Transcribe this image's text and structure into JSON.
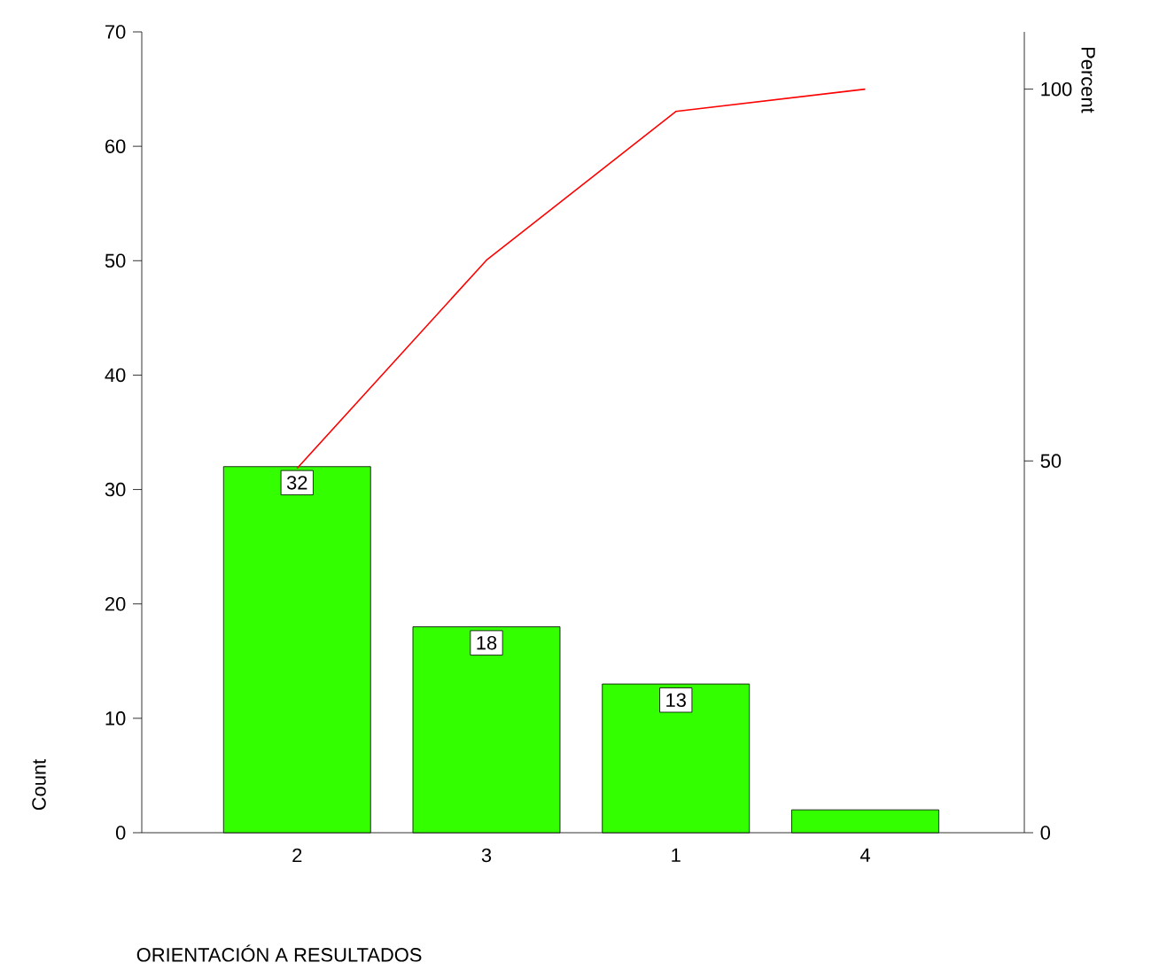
{
  "chart_data": {
    "type": "bar",
    "xlabel": "ORIENTACIÓN A RESULTADOS",
    "ylabel": "Count",
    "y2label": "Percent",
    "categories": [
      "2",
      "3",
      "1",
      "4"
    ],
    "series": [
      {
        "color": "#33ff00",
        "values": [
          32,
          18,
          13,
          2
        ],
        "value_labels": [
          "32",
          "18",
          "13",
          null
        ]
      },
      {
        "type": "line",
        "axis": "y2",
        "color": "#ff0000",
        "values": [
          49,
          77,
          97,
          100
        ]
      }
    ],
    "ylim": [
      0,
      70
    ],
    "yticks": [
      0,
      10,
      20,
      30,
      40,
      50,
      60,
      70
    ],
    "y2lim": [
      0,
      107.7
    ],
    "y2ticks": [
      0,
      50,
      100
    ]
  }
}
